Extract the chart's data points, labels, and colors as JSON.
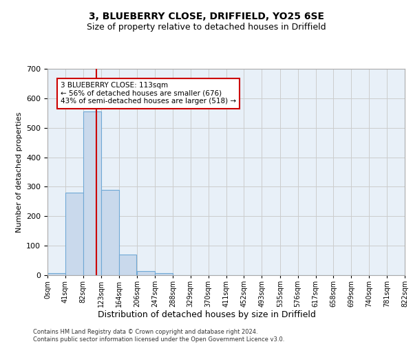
{
  "title": "3, BLUEBERRY CLOSE, DRIFFIELD, YO25 6SE",
  "subtitle": "Size of property relative to detached houses in Driffield",
  "xlabel": "Distribution of detached houses by size in Driffield",
  "ylabel": "Number of detached properties",
  "bin_edges": [
    0,
    41,
    82,
    123,
    164,
    206,
    247,
    288,
    329,
    370,
    411,
    452,
    493,
    535,
    576,
    617,
    658,
    699,
    740,
    781,
    822
  ],
  "bar_heights": [
    7,
    280,
    555,
    290,
    70,
    13,
    8,
    0,
    0,
    0,
    0,
    0,
    0,
    0,
    0,
    0,
    0,
    0,
    0,
    0
  ],
  "bar_color": "#c9d9ec",
  "bar_edgecolor": "#6fa8d5",
  "grid_color": "#cccccc",
  "background_color": "#e8f0f8",
  "property_size": 113,
  "red_line_color": "#cc0000",
  "annotation_text": "3 BLUEBERRY CLOSE: 113sqm\n← 56% of detached houses are smaller (676)\n43% of semi-detached houses are larger (518) →",
  "annotation_box_edgecolor": "#cc0000",
  "ylim": [
    0,
    700
  ],
  "yticks": [
    0,
    100,
    200,
    300,
    400,
    500,
    600,
    700
  ],
  "footer_text": "Contains HM Land Registry data © Crown copyright and database right 2024.\nContains public sector information licensed under the Open Government Licence v3.0.",
  "tick_labels": [
    "0sqm",
    "41sqm",
    "82sqm",
    "123sqm",
    "164sqm",
    "206sqm",
    "247sqm",
    "288sqm",
    "329sqm",
    "370sqm",
    "411sqm",
    "452sqm",
    "493sqm",
    "535sqm",
    "576sqm",
    "617sqm",
    "658sqm",
    "699sqm",
    "740sqm",
    "781sqm",
    "822sqm"
  ],
  "figsize": [
    6.0,
    5.0
  ],
  "dpi": 100
}
